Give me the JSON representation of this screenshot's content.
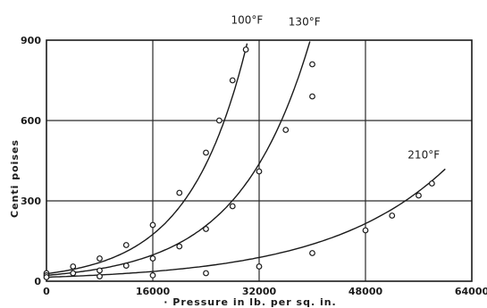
{
  "chart_data": {
    "type": "line",
    "title": "",
    "xlabel": "· Pressure in lb. per sq. in.",
    "ylabel": "Centi poises",
    "xlim": [
      0,
      64000
    ],
    "ylim": [
      0,
      900
    ],
    "x_ticks": [
      0,
      16000,
      32000,
      48000,
      64000
    ],
    "x_tick_labels": [
      "0",
      "16000",
      "32000",
      "48000",
      "64000"
    ],
    "y_ticks": [
      0,
      300,
      600,
      900
    ],
    "y_tick_labels": [
      "0",
      "300",
      "600",
      "900"
    ],
    "grid": true,
    "legend": "labels at curve ends",
    "series": [
      {
        "name": "100°F",
        "x": [
          0,
          4000,
          8000,
          12000,
          16000,
          20000,
          24000,
          26000,
          28000,
          30000
        ],
        "y": [
          30,
          55,
          85,
          135,
          210,
          330,
          480,
          600,
          750,
          865
        ],
        "curve": {
          "a": 28,
          "b": 0.0001145,
          "x_end": 31500
        }
      },
      {
        "name": "130°F",
        "x": [
          0,
          4000,
          8000,
          12000,
          16000,
          20000,
          24000,
          28000,
          32000,
          36000,
          40000,
          40000
        ],
        "y": [
          22,
          30,
          40,
          58,
          85,
          130,
          195,
          280,
          410,
          565,
          690,
          810
        ],
        "curve": {
          "a": 22,
          "b": 9.35e-05,
          "x_end": 41000
        }
      },
      {
        "name": "210°F",
        "x": [
          0,
          8000,
          16000,
          24000,
          32000,
          40000,
          48000,
          52000,
          56000,
          58000
        ],
        "y": [
          15,
          18,
          22,
          30,
          55,
          105,
          190,
          245,
          320,
          365
        ],
        "curve": {
          "a": 15,
          "b": 5.55e-05,
          "x_end": 60000
        }
      }
    ]
  }
}
